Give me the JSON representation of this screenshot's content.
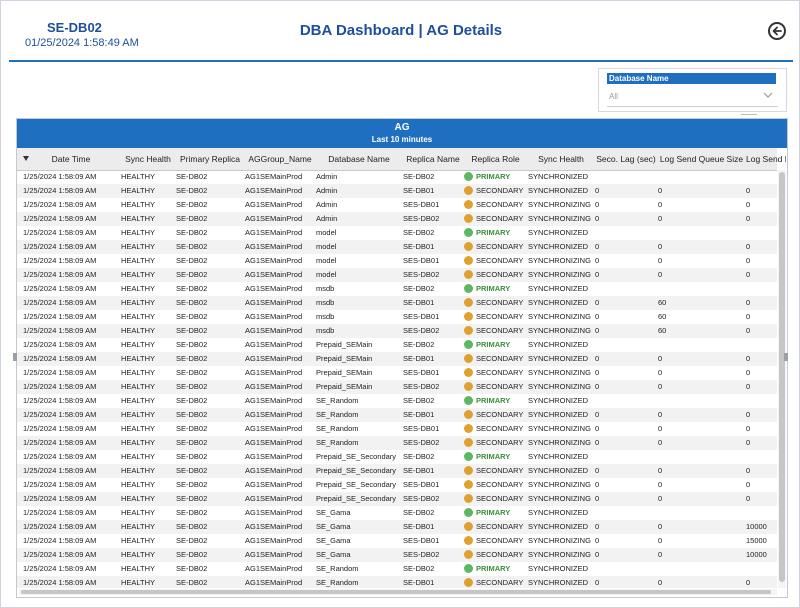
{
  "header": {
    "server_name": "SE-DB02",
    "timestamp": "01/25/2024  1:58:49 AM",
    "title": "DBA Dashboard | AG Details",
    "back_icon": "back-arrow-circle-icon"
  },
  "slicer": {
    "title": "Database Name",
    "value": "All"
  },
  "visual": {
    "title": "AG",
    "subtitle": "Last 10 minutes"
  },
  "columns": [
    "Date Time",
    "Sync Health",
    "Primary Replica",
    "AGGroup_Name",
    "Database Name",
    "Replica Name",
    "Replica Role",
    "Sync Health",
    "Seco. Lag (sec)",
    "Log Send Queue Size",
    "Log Send Ra"
  ],
  "colors": {
    "accent": "#1f6fc0",
    "primary_dot": "#5cb85c",
    "secondary_dot": "#e0a030",
    "primary_text": "#3b8f3b"
  },
  "rows": [
    {
      "dt": "1/25/2024 1:58:09 AM",
      "health": "HEALTHY",
      "primary": "SE-DB02",
      "ag": "AG1SEMainProd",
      "db": "Admin",
      "replica": "SE-DB02",
      "role": "PRIMARY",
      "sync": "SYNCHRONIZED",
      "lag": "",
      "queue": "",
      "rate": ""
    },
    {
      "dt": "1/25/2024 1:58:09 AM",
      "health": "HEALTHY",
      "primary": "SE-DB02",
      "ag": "AG1SEMainProd",
      "db": "Admin",
      "replica": "SE-DB01",
      "role": "SECONDARY",
      "sync": "SYNCHRONIZED",
      "lag": "0",
      "queue": "0",
      "rate": "0"
    },
    {
      "dt": "1/25/2024 1:58:09 AM",
      "health": "HEALTHY",
      "primary": "SE-DB02",
      "ag": "AG1SEMainProd",
      "db": "Admin",
      "replica": "SES-DB01",
      "role": "SECONDARY",
      "sync": "SYNCHRONIZING",
      "lag": "0",
      "queue": "0",
      "rate": "0"
    },
    {
      "dt": "1/25/2024 1:58:09 AM",
      "health": "HEALTHY",
      "primary": "SE-DB02",
      "ag": "AG1SEMainProd",
      "db": "Admin",
      "replica": "SES-DB02",
      "role": "SECONDARY",
      "sync": "SYNCHRONIZING",
      "lag": "0",
      "queue": "0",
      "rate": "0"
    },
    {
      "dt": "1/25/2024 1:58:09 AM",
      "health": "HEALTHY",
      "primary": "SE-DB02",
      "ag": "AG1SEMainProd",
      "db": "model",
      "replica": "SE-DB02",
      "role": "PRIMARY",
      "sync": "SYNCHRONIZED",
      "lag": "",
      "queue": "",
      "rate": ""
    },
    {
      "dt": "1/25/2024 1:58:09 AM",
      "health": "HEALTHY",
      "primary": "SE-DB02",
      "ag": "AG1SEMainProd",
      "db": "model",
      "replica": "SE-DB01",
      "role": "SECONDARY",
      "sync": "SYNCHRONIZED",
      "lag": "0",
      "queue": "0",
      "rate": "0"
    },
    {
      "dt": "1/25/2024 1:58:09 AM",
      "health": "HEALTHY",
      "primary": "SE-DB02",
      "ag": "AG1SEMainProd",
      "db": "model",
      "replica": "SES-DB01",
      "role": "SECONDARY",
      "sync": "SYNCHRONIZING",
      "lag": "0",
      "queue": "0",
      "rate": "0"
    },
    {
      "dt": "1/25/2024 1:58:09 AM",
      "health": "HEALTHY",
      "primary": "SE-DB02",
      "ag": "AG1SEMainProd",
      "db": "model",
      "replica": "SES-DB02",
      "role": "SECONDARY",
      "sync": "SYNCHRONIZING",
      "lag": "0",
      "queue": "0",
      "rate": "0"
    },
    {
      "dt": "1/25/2024 1:58:09 AM",
      "health": "HEALTHY",
      "primary": "SE-DB02",
      "ag": "AG1SEMainProd",
      "db": "msdb",
      "replica": "SE-DB02",
      "role": "PRIMARY",
      "sync": "SYNCHRONIZED",
      "lag": "",
      "queue": "",
      "rate": ""
    },
    {
      "dt": "1/25/2024 1:58:09 AM",
      "health": "HEALTHY",
      "primary": "SE-DB02",
      "ag": "AG1SEMainProd",
      "db": "msdb",
      "replica": "SE-DB01",
      "role": "SECONDARY",
      "sync": "SYNCHRONIZED",
      "lag": "0",
      "queue": "60",
      "rate": "0"
    },
    {
      "dt": "1/25/2024 1:58:09 AM",
      "health": "HEALTHY",
      "primary": "SE-DB02",
      "ag": "AG1SEMainProd",
      "db": "msdb",
      "replica": "SES-DB01",
      "role": "SECONDARY",
      "sync": "SYNCHRONIZING",
      "lag": "0",
      "queue": "60",
      "rate": "0"
    },
    {
      "dt": "1/25/2024 1:58:09 AM",
      "health": "HEALTHY",
      "primary": "SE-DB02",
      "ag": "AG1SEMainProd",
      "db": "msdb",
      "replica": "SES-DB02",
      "role": "SECONDARY",
      "sync": "SYNCHRONIZING",
      "lag": "0",
      "queue": "60",
      "rate": "0"
    },
    {
      "dt": "1/25/2024 1:58:09 AM",
      "health": "HEALTHY",
      "primary": "SE-DB02",
      "ag": "AG1SEMainProd",
      "db": "Prepaid_SEMain",
      "replica": "SE-DB02",
      "role": "PRIMARY",
      "sync": "SYNCHRONIZED",
      "lag": "",
      "queue": "",
      "rate": ""
    },
    {
      "dt": "1/25/2024 1:58:09 AM",
      "health": "HEALTHY",
      "primary": "SE-DB02",
      "ag": "AG1SEMainProd",
      "db": "Prepaid_SEMain",
      "replica": "SE-DB01",
      "role": "SECONDARY",
      "sync": "SYNCHRONIZED",
      "lag": "0",
      "queue": "0",
      "rate": "0"
    },
    {
      "dt": "1/25/2024 1:58:09 AM",
      "health": "HEALTHY",
      "primary": "SE-DB02",
      "ag": "AG1SEMainProd",
      "db": "Prepaid_SEMain",
      "replica": "SES-DB01",
      "role": "SECONDARY",
      "sync": "SYNCHRONIZING",
      "lag": "0",
      "queue": "0",
      "rate": "0"
    },
    {
      "dt": "1/25/2024 1:58:09 AM",
      "health": "HEALTHY",
      "primary": "SE-DB02",
      "ag": "AG1SEMainProd",
      "db": "Prepaid_SEMain",
      "replica": "SES-DB02",
      "role": "SECONDARY",
      "sync": "SYNCHRONIZING",
      "lag": "0",
      "queue": "0",
      "rate": "0"
    },
    {
      "dt": "1/25/2024 1:58:09 AM",
      "health": "HEALTHY",
      "primary": "SE-DB02",
      "ag": "AG1SEMainProd",
      "db": "SE_Random",
      "replica": "SE-DB02",
      "role": "PRIMARY",
      "sync": "SYNCHRONIZED",
      "lag": "",
      "queue": "",
      "rate": ""
    },
    {
      "dt": "1/25/2024 1:58:09 AM",
      "health": "HEALTHY",
      "primary": "SE-DB02",
      "ag": "AG1SEMainProd",
      "db": "SE_Random",
      "replica": "SE-DB01",
      "role": "SECONDARY",
      "sync": "SYNCHRONIZED",
      "lag": "0",
      "queue": "0",
      "rate": "0"
    },
    {
      "dt": "1/25/2024 1:58:09 AM",
      "health": "HEALTHY",
      "primary": "SE-DB02",
      "ag": "AG1SEMainProd",
      "db": "SE_Random",
      "replica": "SES-DB01",
      "role": "SECONDARY",
      "sync": "SYNCHRONIZING",
      "lag": "0",
      "queue": "0",
      "rate": "0"
    },
    {
      "dt": "1/25/2024 1:58:09 AM",
      "health": "HEALTHY",
      "primary": "SE-DB02",
      "ag": "AG1SEMainProd",
      "db": "SE_Random",
      "replica": "SES-DB02",
      "role": "SECONDARY",
      "sync": "SYNCHRONIZING",
      "lag": "0",
      "queue": "0",
      "rate": "0"
    },
    {
      "dt": "1/25/2024 1:58:09 AM",
      "health": "HEALTHY",
      "primary": "SE-DB02",
      "ag": "AG1SEMainProd",
      "db": "Prepaid_SE_Secondary",
      "replica": "SE-DB02",
      "role": "PRIMARY",
      "sync": "SYNCHRONIZED",
      "lag": "",
      "queue": "",
      "rate": ""
    },
    {
      "dt": "1/25/2024 1:58:09 AM",
      "health": "HEALTHY",
      "primary": "SE-DB02",
      "ag": "AG1SEMainProd",
      "db": "Prepaid_SE_Secondary",
      "replica": "SE-DB01",
      "role": "SECONDARY",
      "sync": "SYNCHRONIZED",
      "lag": "0",
      "queue": "0",
      "rate": "0"
    },
    {
      "dt": "1/25/2024 1:58:09 AM",
      "health": "HEALTHY",
      "primary": "SE-DB02",
      "ag": "AG1SEMainProd",
      "db": "Prepaid_SE_Secondary",
      "replica": "SES-DB01",
      "role": "SECONDARY",
      "sync": "SYNCHRONIZING",
      "lag": "0",
      "queue": "0",
      "rate": "0"
    },
    {
      "dt": "1/25/2024 1:58:09 AM",
      "health": "HEALTHY",
      "primary": "SE-DB02",
      "ag": "AG1SEMainProd",
      "db": "Prepaid_SE_Secondary",
      "replica": "SES-DB02",
      "role": "SECONDARY",
      "sync": "SYNCHRONIZING",
      "lag": "0",
      "queue": "0",
      "rate": "0"
    },
    {
      "dt": "1/25/2024 1:58:09 AM",
      "health": "HEALTHY",
      "primary": "SE-DB02",
      "ag": "AG1SEMainProd",
      "db": "SE_Gama",
      "replica": "SE-DB02",
      "role": "PRIMARY",
      "sync": "SYNCHRONIZED",
      "lag": "",
      "queue": "",
      "rate": ""
    },
    {
      "dt": "1/25/2024 1:58:09 AM",
      "health": "HEALTHY",
      "primary": "SE-DB02",
      "ag": "AG1SEMainProd",
      "db": "SE_Gama",
      "replica": "SE-DB01",
      "role": "SECONDARY",
      "sync": "SYNCHRONIZED",
      "lag": "0",
      "queue": "0",
      "rate": "10000"
    },
    {
      "dt": "1/25/2024 1:58:09 AM",
      "health": "HEALTHY",
      "primary": "SE-DB02",
      "ag": "AG1SEMainProd",
      "db": "SE_Gama",
      "replica": "SES-DB01",
      "role": "SECONDARY",
      "sync": "SYNCHRONIZING",
      "lag": "0",
      "queue": "0",
      "rate": "15000"
    },
    {
      "dt": "1/25/2024 1:58:09 AM",
      "health": "HEALTHY",
      "primary": "SE-DB02",
      "ag": "AG1SEMainProd",
      "db": "SE_Gama",
      "replica": "SES-DB02",
      "role": "SECONDARY",
      "sync": "SYNCHRONIZING",
      "lag": "0",
      "queue": "0",
      "rate": "10000"
    },
    {
      "dt": "1/25/2024 1:58:09 AM",
      "health": "HEALTHY",
      "primary": "SE-DB02",
      "ag": "AG1SEMainProd",
      "db": "SE_Random",
      "replica": "SE-DB02",
      "role": "PRIMARY",
      "sync": "SYNCHRONIZED",
      "lag": "",
      "queue": "",
      "rate": ""
    },
    {
      "dt": "1/25/2024 1:58:09 AM",
      "health": "HEALTHY",
      "primary": "SE-DB02",
      "ag": "AG1SEMainProd",
      "db": "SE_Random",
      "replica": "SE-DB01",
      "role": "SECONDARY",
      "sync": "SYNCHRONIZED",
      "lag": "0",
      "queue": "0",
      "rate": "0"
    }
  ]
}
